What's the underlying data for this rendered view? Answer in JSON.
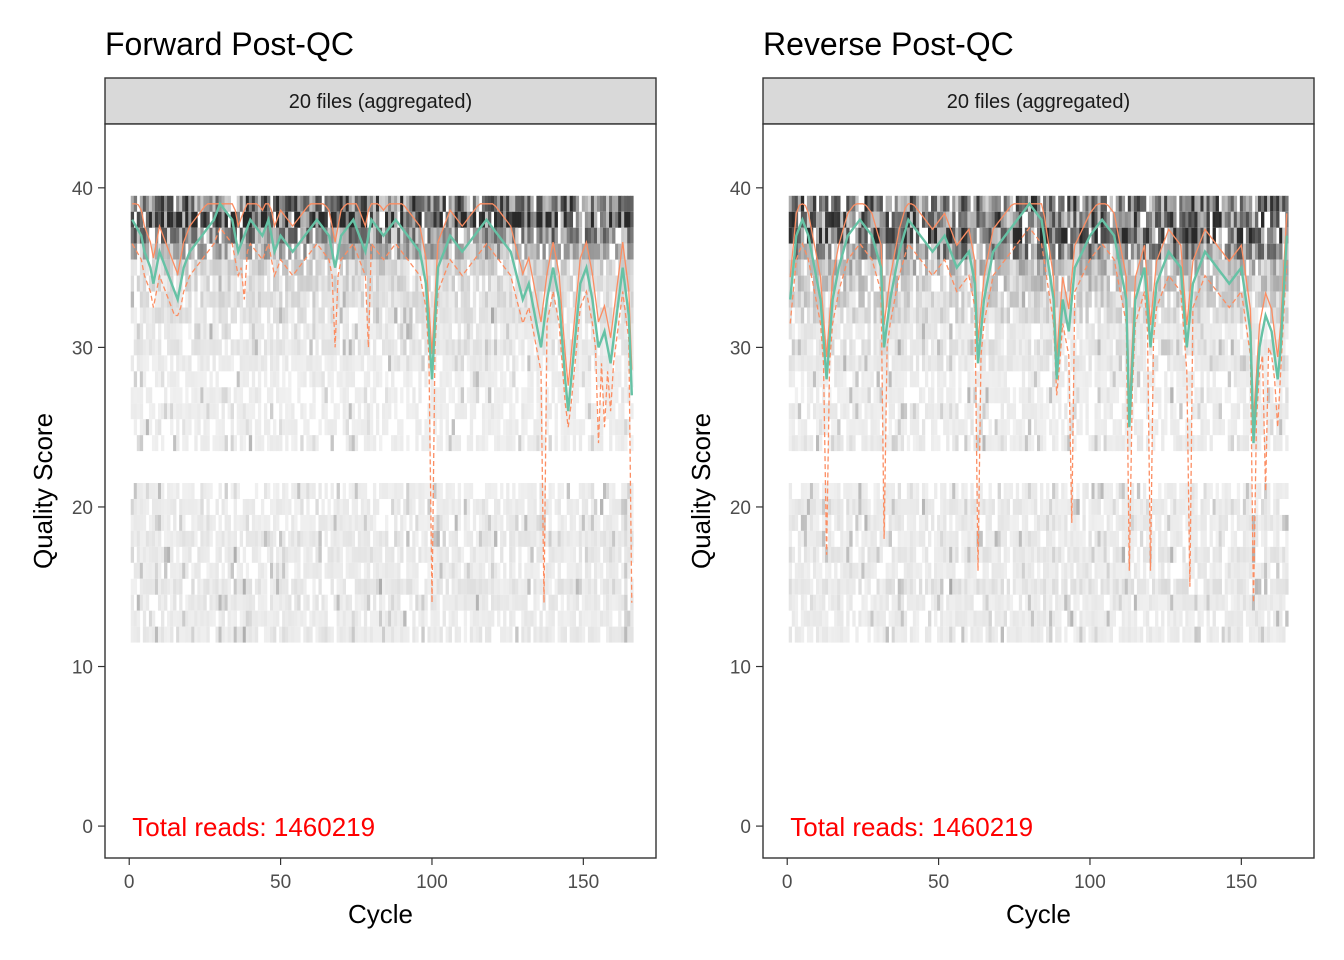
{
  "colors": {
    "median": "#66C2A5",
    "quartile": "#FC8D62",
    "annotation": "#FF0000",
    "strip_fill": "#D9D9D9",
    "frame": "#333333"
  },
  "chart_data": [
    {
      "type": "heatmap",
      "title": "Forward Post-QC",
      "strip_label": "20 files (aggregated)",
      "xlabel": "Cycle",
      "ylabel": "Quality Score",
      "xlim": [
        -8,
        174
      ],
      "ylim": [
        -2,
        44
      ],
      "x_ticks": [
        0,
        50,
        100,
        150
      ],
      "y_ticks": [
        0,
        10,
        20,
        30,
        40
      ],
      "grid": false,
      "annotation": "Total reads: 1460219",
      "max_cycle": 166,
      "median_anchors": [
        [
          1,
          38
        ],
        [
          4,
          37
        ],
        [
          5,
          36
        ],
        [
          7,
          35
        ],
        [
          8,
          34
        ],
        [
          10,
          36
        ],
        [
          12,
          35
        ],
        [
          14,
          34
        ],
        [
          16,
          33
        ],
        [
          18,
          35
        ],
        [
          20,
          36
        ],
        [
          24,
          37
        ],
        [
          28,
          38
        ],
        [
          30,
          39
        ],
        [
          34,
          38
        ],
        [
          36,
          36
        ],
        [
          38,
          37
        ],
        [
          40,
          38
        ],
        [
          44,
          37
        ],
        [
          46,
          38
        ],
        [
          48,
          36
        ],
        [
          50,
          37
        ],
        [
          54,
          36
        ],
        [
          58,
          37
        ],
        [
          62,
          38
        ],
        [
          66,
          37
        ],
        [
          68,
          35
        ],
        [
          70,
          37
        ],
        [
          74,
          38
        ],
        [
          76,
          37
        ],
        [
          78,
          36
        ],
        [
          80,
          38
        ],
        [
          84,
          37
        ],
        [
          88,
          38
        ],
        [
          92,
          37
        ],
        [
          96,
          36
        ],
        [
          98,
          34
        ],
        [
          100,
          28
        ],
        [
          102,
          35
        ],
        [
          106,
          37
        ],
        [
          110,
          36
        ],
        [
          114,
          37
        ],
        [
          118,
          38
        ],
        [
          122,
          37
        ],
        [
          126,
          36
        ],
        [
          130,
          33
        ],
        [
          132,
          34
        ],
        [
          134,
          32
        ],
        [
          136,
          30
        ],
        [
          138,
          33
        ],
        [
          140,
          35
        ],
        [
          142,
          33
        ],
        [
          144,
          28
        ],
        [
          145,
          26
        ],
        [
          147,
          30
        ],
        [
          149,
          34
        ],
        [
          151,
          35
        ],
        [
          153,
          33
        ],
        [
          155,
          30
        ],
        [
          157,
          31
        ],
        [
          159,
          29
        ],
        [
          161,
          32
        ],
        [
          163,
          35
        ],
        [
          165,
          32
        ],
        [
          166,
          27
        ]
      ],
      "q25_dips": [
        [
          16,
          32
        ],
        [
          38,
          33
        ],
        [
          68,
          30
        ],
        [
          79,
          30
        ],
        [
          100,
          14
        ],
        [
          137,
          14
        ],
        [
          145,
          25
        ],
        [
          155,
          24
        ],
        [
          157,
          25
        ],
        [
          159,
          26
        ],
        [
          166,
          14
        ]
      ],
      "q75_offset": 1.6,
      "heat_bands": [
        [
          38.5,
          39.5,
          0.55
        ],
        [
          37.5,
          38.5,
          0.85
        ],
        [
          36.5,
          37.5,
          0.45
        ],
        [
          35.5,
          36.5,
          0.3
        ],
        [
          34.5,
          35.5,
          0.15
        ],
        [
          33.5,
          34.5,
          0.12
        ],
        [
          32.5,
          33.5,
          0.1
        ],
        [
          31.5,
          32.5,
          0.08
        ],
        [
          30.5,
          31.5,
          0.05
        ],
        [
          29.5,
          30.5,
          0.06
        ],
        [
          28.5,
          29.5,
          0.04
        ],
        [
          27.5,
          28.5,
          0.03
        ],
        [
          26.5,
          27.5,
          0.03
        ],
        [
          25.5,
          26.5,
          0.03
        ],
        [
          24.5,
          25.5,
          0.03
        ],
        [
          23.5,
          24.5,
          0.03
        ],
        [
          20.5,
          21.5,
          0.03
        ],
        [
          19.5,
          20.5,
          0.04
        ],
        [
          18.5,
          19.5,
          0.04
        ],
        [
          17.5,
          18.5,
          0.05
        ],
        [
          16.5,
          17.5,
          0.05
        ],
        [
          15.5,
          16.5,
          0.04
        ],
        [
          14.5,
          15.5,
          0.06
        ],
        [
          13.5,
          14.5,
          0.05
        ],
        [
          12.5,
          13.5,
          0.04
        ],
        [
          11.5,
          12.5,
          0.05
        ]
      ],
      "seed": 17
    },
    {
      "type": "heatmap",
      "title": "Reverse Post-QC",
      "strip_label": "20 files (aggregated)",
      "xlabel": "Cycle",
      "ylabel": "Quality Score",
      "xlim": [
        -8,
        174
      ],
      "ylim": [
        -2,
        44
      ],
      "x_ticks": [
        0,
        50,
        100,
        150
      ],
      "y_ticks": [
        0,
        10,
        20,
        30,
        40
      ],
      "grid": false,
      "annotation": "Total reads: 1460219",
      "max_cycle": 165,
      "median_anchors": [
        [
          1,
          33
        ],
        [
          3,
          37
        ],
        [
          5,
          38
        ],
        [
          7,
          37
        ],
        [
          9,
          35
        ],
        [
          11,
          33
        ],
        [
          13,
          28
        ],
        [
          15,
          33
        ],
        [
          17,
          35
        ],
        [
          20,
          37
        ],
        [
          24,
          38
        ],
        [
          28,
          37
        ],
        [
          31,
          35
        ],
        [
          32,
          30
        ],
        [
          34,
          33
        ],
        [
          37,
          36
        ],
        [
          40,
          38
        ],
        [
          44,
          37
        ],
        [
          48,
          36
        ],
        [
          52,
          37
        ],
        [
          56,
          35
        ],
        [
          60,
          36
        ],
        [
          62,
          34
        ],
        [
          63,
          29
        ],
        [
          65,
          33
        ],
        [
          68,
          36
        ],
        [
          72,
          37
        ],
        [
          76,
          38
        ],
        [
          80,
          39
        ],
        [
          84,
          38
        ],
        [
          88,
          33
        ],
        [
          89,
          28
        ],
        [
          91,
          33
        ],
        [
          93,
          31
        ],
        [
          95,
          35
        ],
        [
          100,
          37
        ],
        [
          104,
          38
        ],
        [
          108,
          37
        ],
        [
          112,
          33
        ],
        [
          113,
          25
        ],
        [
          115,
          33
        ],
        [
          118,
          35
        ],
        [
          120,
          30
        ],
        [
          122,
          34
        ],
        [
          126,
          36
        ],
        [
          130,
          35
        ],
        [
          132,
          30
        ],
        [
          134,
          34
        ],
        [
          138,
          36
        ],
        [
          142,
          35
        ],
        [
          146,
          34
        ],
        [
          150,
          35
        ],
        [
          153,
          31
        ],
        [
          154,
          24
        ],
        [
          156,
          30
        ],
        [
          158,
          32
        ],
        [
          160,
          31
        ],
        [
          162,
          28
        ],
        [
          163,
          30
        ],
        [
          165,
          37
        ]
      ],
      "q25_dips": [
        [
          13,
          17
        ],
        [
          32,
          18
        ],
        [
          63,
          16
        ],
        [
          89,
          27
        ],
        [
          94,
          19
        ],
        [
          113,
          16
        ],
        [
          120,
          16
        ],
        [
          133,
          15
        ],
        [
          154,
          14
        ],
        [
          158,
          21
        ],
        [
          162,
          25
        ]
      ],
      "q75_offset": 1.4,
      "heat_bands": [
        [
          38.5,
          39.5,
          0.55
        ],
        [
          37.5,
          38.5,
          0.55
        ],
        [
          36.5,
          37.5,
          0.7
        ],
        [
          35.5,
          36.5,
          0.45
        ],
        [
          34.5,
          35.5,
          0.25
        ],
        [
          33.5,
          34.5,
          0.2
        ],
        [
          32.5,
          33.5,
          0.15
        ],
        [
          31.5,
          32.5,
          0.12
        ],
        [
          30.5,
          31.5,
          0.05
        ],
        [
          29.5,
          30.5,
          0.08
        ],
        [
          28.5,
          29.5,
          0.06
        ],
        [
          27.5,
          28.5,
          0.03
        ],
        [
          26.5,
          27.5,
          0.03
        ],
        [
          25.5,
          26.5,
          0.04
        ],
        [
          24.5,
          25.5,
          0.03
        ],
        [
          23.5,
          24.5,
          0.04
        ],
        [
          20.5,
          21.5,
          0.03
        ],
        [
          19.5,
          20.5,
          0.05
        ],
        [
          18.5,
          19.5,
          0.05
        ],
        [
          17.5,
          18.5,
          0.04
        ],
        [
          16.5,
          17.5,
          0.06
        ],
        [
          15.5,
          16.5,
          0.04
        ],
        [
          14.5,
          15.5,
          0.07
        ],
        [
          13.5,
          14.5,
          0.04
        ],
        [
          12.5,
          13.5,
          0.04
        ],
        [
          11.5,
          12.5,
          0.04
        ]
      ],
      "seed": 41
    }
  ]
}
